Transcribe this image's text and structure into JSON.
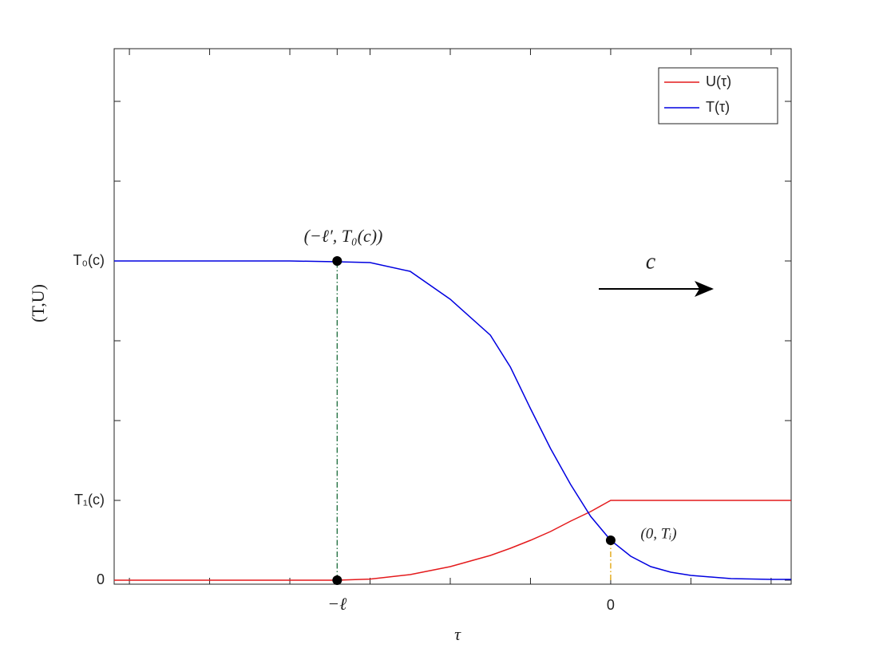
{
  "chart_data": {
    "type": "line",
    "xlabel": "τ",
    "ylabel": "(T,U)",
    "xlim": [
      -6.19,
      2.25
    ],
    "ylim": [
      -0.05,
      6.66
    ],
    "xticks": [
      {
        "value": -6,
        "label": null
      },
      {
        "value": -5,
        "label": null
      },
      {
        "value": -4,
        "label": null
      },
      {
        "value": -3.41,
        "label": "−ℓ"
      },
      {
        "value": -3,
        "label": null
      },
      {
        "value": -2,
        "label": null
      },
      {
        "value": -1,
        "label": null
      },
      0,
      {
        "value": 1,
        "label": null
      },
      {
        "value": 2,
        "label": null
      }
    ],
    "yticks": [
      0,
      {
        "value": 1,
        "label": "T₁(c)"
      },
      {
        "value": 2,
        "label": null
      },
      {
        "value": 3,
        "label": null
      },
      {
        "value": 4,
        "label": "T₀(c)"
      },
      {
        "value": 5,
        "label": null
      },
      {
        "value": 6,
        "label": null
      }
    ],
    "x": [
      -6.19,
      -5,
      -4,
      -3.41,
      -3,
      -2.5,
      -2,
      -1.5,
      -1.25,
      -1,
      -0.75,
      -0.5,
      -0.25,
      0,
      0.25,
      0.5,
      0.75,
      1,
      1.5,
      2,
      2.25
    ],
    "series": [
      {
        "name": "U(τ)",
        "color": "#e41a1c",
        "values": [
          0,
          0,
          0,
          0,
          0.014,
          0.07,
          0.17,
          0.31,
          0.4,
          0.5,
          0.61,
          0.74,
          0.86,
          1,
          1,
          1,
          1,
          1,
          1,
          1,
          1
        ]
      },
      {
        "name": "T(τ)",
        "color": "#0000e0",
        "values": [
          4,
          4,
          4,
          3.99,
          3.98,
          3.87,
          3.52,
          3.07,
          2.67,
          2.15,
          1.65,
          1.2,
          0.8,
          0.5,
          0.3,
          0.17,
          0.1,
          0.06,
          0.02,
          0.01,
          0.01
        ]
      }
    ],
    "markers": {
      "x": [
        -3.41,
        -3.41,
        0
      ],
      "values": [
        4,
        0,
        0.5
      ],
      "guide_colors": [
        "#1a6b3a",
        "#1a6b3a",
        "#e0a000"
      ]
    },
    "annotations": [
      "(−ℓ′, T₀(c))",
      "(0, Tᵢ)",
      "c"
    ],
    "legend": "top-right"
  }
}
